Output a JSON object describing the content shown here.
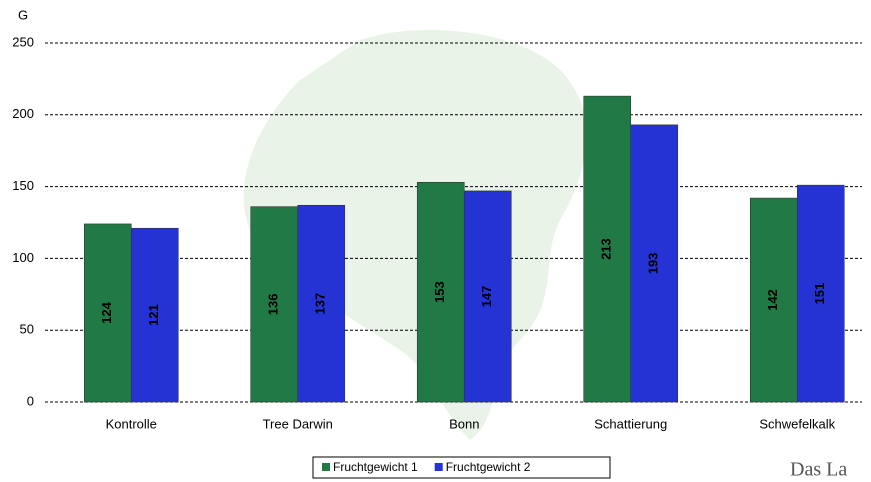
{
  "chart_data": {
    "type": "bar",
    "y_label": "G",
    "categories": [
      "Kontrolle",
      "Tree Darwin",
      "Bonn",
      "Schattierung",
      "Schwefelkalk"
    ],
    "series": [
      {
        "name": "Fruchtgewicht 1",
        "color": "#217a45",
        "values": [
          124,
          136,
          153,
          213,
          142
        ]
      },
      {
        "name": "Fruchtgewicht 2",
        "color": "#2633d4",
        "values": [
          121,
          137,
          147,
          193,
          151
        ]
      }
    ],
    "ylim": [
      0,
      250
    ],
    "yticks": [
      0,
      50,
      100,
      150,
      200,
      250
    ],
    "grid": true,
    "legend": "bottom",
    "annotation": "Das La"
  }
}
